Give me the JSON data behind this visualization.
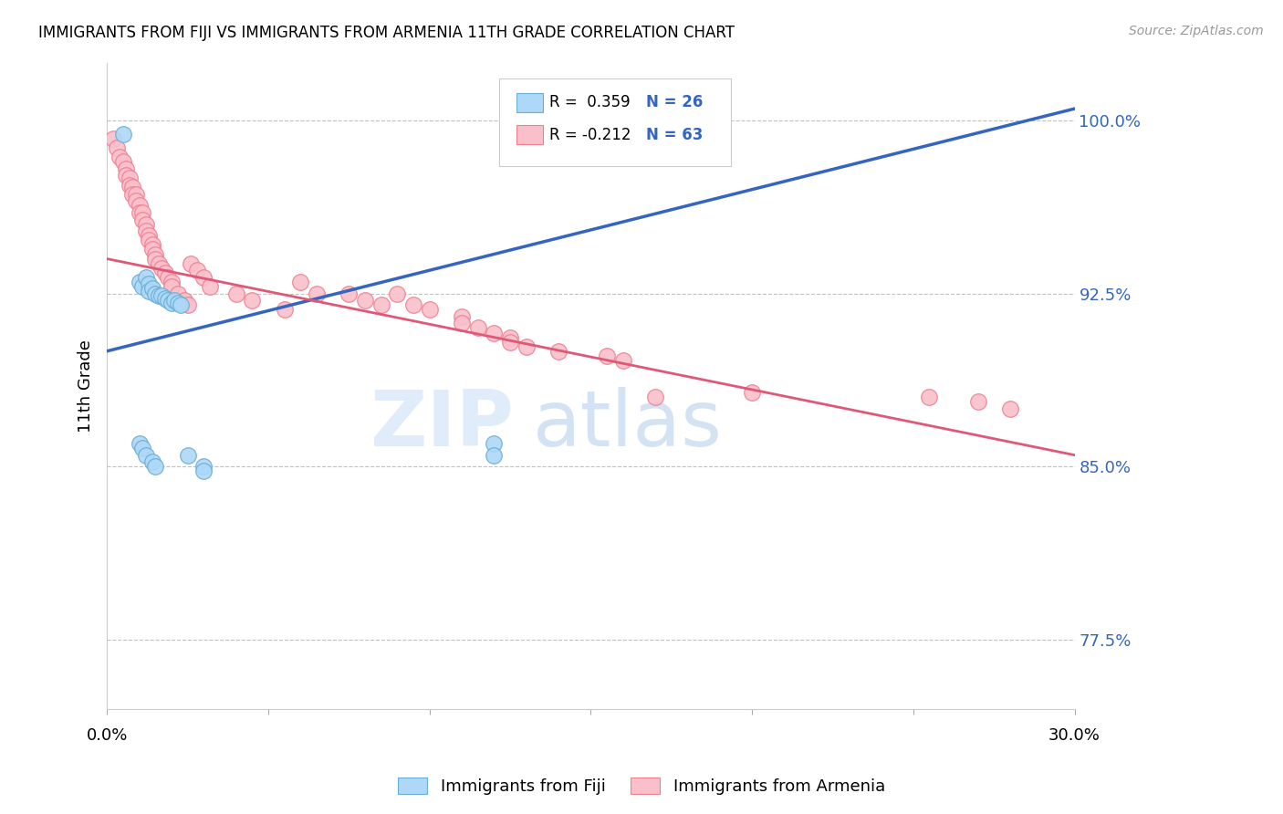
{
  "title": "IMMIGRANTS FROM FIJI VS IMMIGRANTS FROM ARMENIA 11TH GRADE CORRELATION CHART",
  "source": "Source: ZipAtlas.com",
  "ylabel": "11th Grade",
  "xlim": [
    0.0,
    0.3
  ],
  "ylim": [
    0.745,
    1.025
  ],
  "yticks": [
    0.775,
    0.85,
    0.925,
    1.0
  ],
  "ytick_labels": [
    "77.5%",
    "85.0%",
    "92.5%",
    "100.0%"
  ],
  "legend_fiji_r": "R =  0.359",
  "legend_fiji_n": "N = 26",
  "legend_armenia_r": "R = -0.212",
  "legend_armenia_n": "N = 63",
  "fiji_color": "#add8f7",
  "armenia_color": "#f9c0cb",
  "fiji_edge_color": "#6baed6",
  "armenia_edge_color": "#f08090",
  "fiji_line_color": "#3465c0",
  "armenia_line_color": "#e05878",
  "fiji_line_x0": 0.0,
  "fiji_line_y0": 0.9,
  "fiji_line_x1": 0.3,
  "fiji_line_y1": 1.005,
  "armenia_line_x0": 0.0,
  "armenia_line_y0": 0.94,
  "armenia_line_x1": 0.3,
  "armenia_line_y1": 0.855,
  "fiji_x": [
    0.005,
    0.01,
    0.011,
    0.012,
    0.013,
    0.013,
    0.014,
    0.015,
    0.016,
    0.017,
    0.018,
    0.019,
    0.02,
    0.021,
    0.022,
    0.023,
    0.01,
    0.011,
    0.012,
    0.014,
    0.015,
    0.025,
    0.03,
    0.03,
    0.12,
    0.12
  ],
  "fiji_y": [
    0.994,
    0.93,
    0.928,
    0.932,
    0.929,
    0.926,
    0.927,
    0.925,
    0.924,
    0.924,
    0.923,
    0.922,
    0.921,
    0.922,
    0.921,
    0.92,
    0.86,
    0.858,
    0.855,
    0.852,
    0.85,
    0.855,
    0.85,
    0.848,
    0.86,
    0.855
  ],
  "armenia_x": [
    0.002,
    0.003,
    0.004,
    0.005,
    0.006,
    0.006,
    0.007,
    0.007,
    0.008,
    0.008,
    0.009,
    0.009,
    0.01,
    0.01,
    0.011,
    0.011,
    0.012,
    0.012,
    0.013,
    0.013,
    0.014,
    0.014,
    0.015,
    0.015,
    0.016,
    0.017,
    0.018,
    0.019,
    0.02,
    0.02,
    0.022,
    0.024,
    0.025,
    0.026,
    0.028,
    0.03,
    0.032,
    0.04,
    0.045,
    0.055,
    0.06,
    0.065,
    0.075,
    0.08,
    0.085,
    0.09,
    0.095,
    0.1,
    0.11,
    0.11,
    0.115,
    0.12,
    0.125,
    0.125,
    0.13,
    0.14,
    0.155,
    0.16,
    0.17,
    0.2,
    0.255,
    0.27,
    0.28
  ],
  "armenia_y": [
    0.992,
    0.988,
    0.984,
    0.982,
    0.979,
    0.976,
    0.975,
    0.972,
    0.971,
    0.968,
    0.968,
    0.965,
    0.963,
    0.96,
    0.96,
    0.957,
    0.955,
    0.952,
    0.95,
    0.948,
    0.946,
    0.944,
    0.942,
    0.94,
    0.938,
    0.936,
    0.934,
    0.932,
    0.93,
    0.928,
    0.925,
    0.922,
    0.92,
    0.938,
    0.935,
    0.932,
    0.928,
    0.925,
    0.922,
    0.918,
    0.93,
    0.925,
    0.925,
    0.922,
    0.92,
    0.925,
    0.92,
    0.918,
    0.915,
    0.912,
    0.91,
    0.908,
    0.906,
    0.904,
    0.902,
    0.9,
    0.898,
    0.896,
    0.88,
    0.882,
    0.88,
    0.878,
    0.875
  ],
  "watermark_zip": "ZIP",
  "watermark_atlas": "atlas",
  "background_color": "#ffffff",
  "grid_color": "#bbbbbb",
  "title_fontsize": 12,
  "source_color": "#999999"
}
